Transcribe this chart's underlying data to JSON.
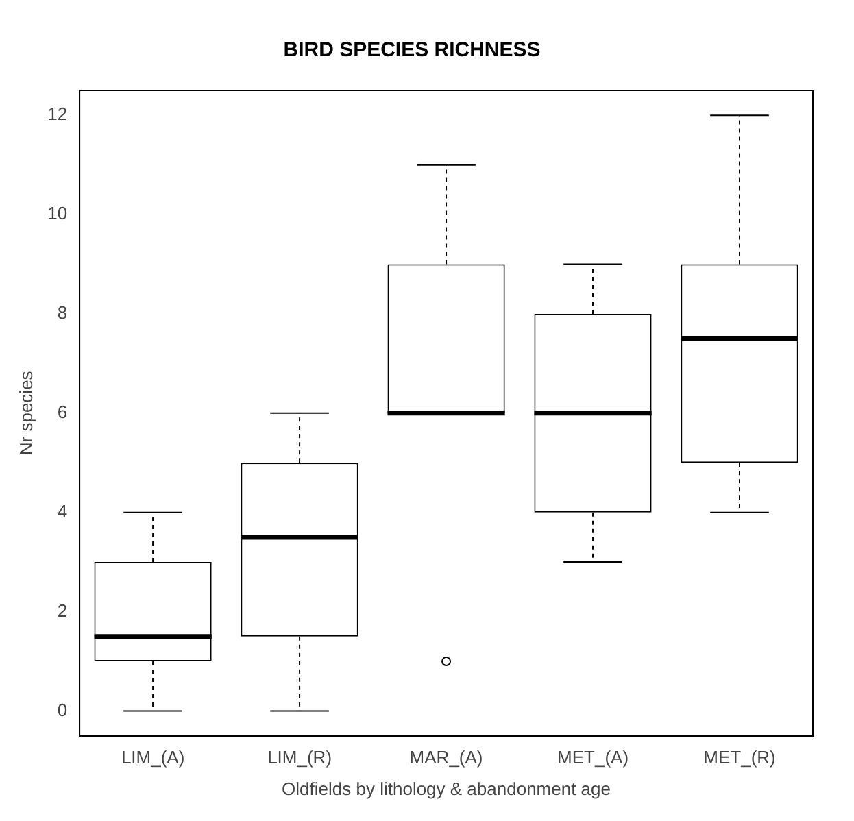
{
  "chart_data": {
    "type": "box",
    "title": "BIRD SPECIES RICHNESS",
    "xlabel": "Oldfields by lithology & abandonment age",
    "ylabel": "Nr species",
    "categories": [
      "LIM_(A)",
      "LIM_(R)",
      "MAR_(A)",
      "MET_(A)",
      "MET_(R)"
    ],
    "boxes": [
      {
        "low": 0,
        "q1": 1,
        "median": 1.5,
        "q3": 3,
        "high": 4
      },
      {
        "low": 0,
        "q1": 1.5,
        "median": 3.5,
        "q3": 5,
        "high": 6
      },
      {
        "low": 6,
        "q1": 6,
        "median": 6,
        "q3": 9,
        "high": 11,
        "outliers": [
          1
        ]
      },
      {
        "low": 3,
        "q1": 4,
        "median": 6,
        "q3": 8,
        "high": 9
      },
      {
        "low": 4,
        "q1": 5,
        "median": 7.5,
        "q3": 9,
        "high": 12
      }
    ],
    "ylim": [
      -0.5,
      12.5
    ],
    "yticks": [
      0,
      2,
      4,
      6,
      8,
      10,
      12
    ],
    "grid": false,
    "legend": false
  }
}
